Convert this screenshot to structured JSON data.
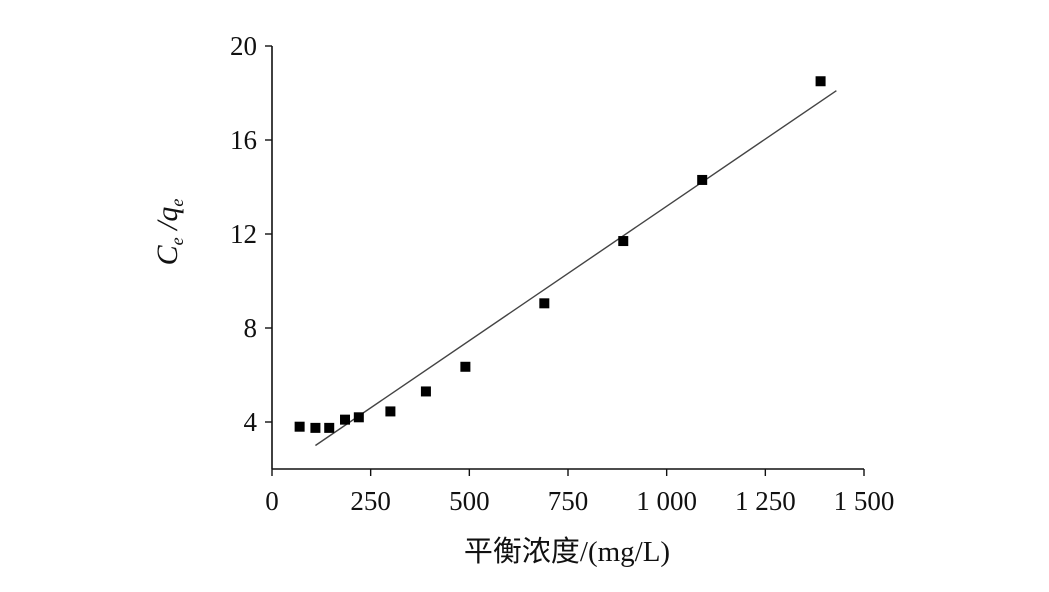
{
  "chart_data": {
    "type": "scatter",
    "xlabel": "平衡浓度/(mg/L)",
    "ylabel": {
      "main1": "C",
      "sub1": "e",
      "slash": " /",
      "main2": "q",
      "sub2": "e"
    },
    "xlim": [
      0,
      1500
    ],
    "ylim": [
      2,
      20
    ],
    "xticks": [
      0,
      250,
      500,
      750,
      1000,
      1250,
      1500
    ],
    "xtick_labels": [
      "0",
      "250",
      "500",
      "750",
      "1 000",
      "1 250",
      "1 500"
    ],
    "yticks": [
      4,
      8,
      12,
      16,
      20
    ],
    "ytick_labels": [
      "4",
      "8",
      "12",
      "16",
      "20"
    ],
    "grid": false,
    "series": [
      {
        "marker": "square",
        "color": "#000000",
        "x": [
          70,
          110,
          145,
          185,
          220,
          300,
          390,
          490,
          690,
          890,
          1090,
          1390
        ],
        "y": [
          3.8,
          3.75,
          3.75,
          4.1,
          4.2,
          4.45,
          5.3,
          6.35,
          9.05,
          11.7,
          14.3,
          18.5
        ]
      }
    ],
    "fit_line": {
      "color": "#444444",
      "x": [
        110,
        1430
      ],
      "y": [
        3.0,
        18.1
      ]
    }
  }
}
